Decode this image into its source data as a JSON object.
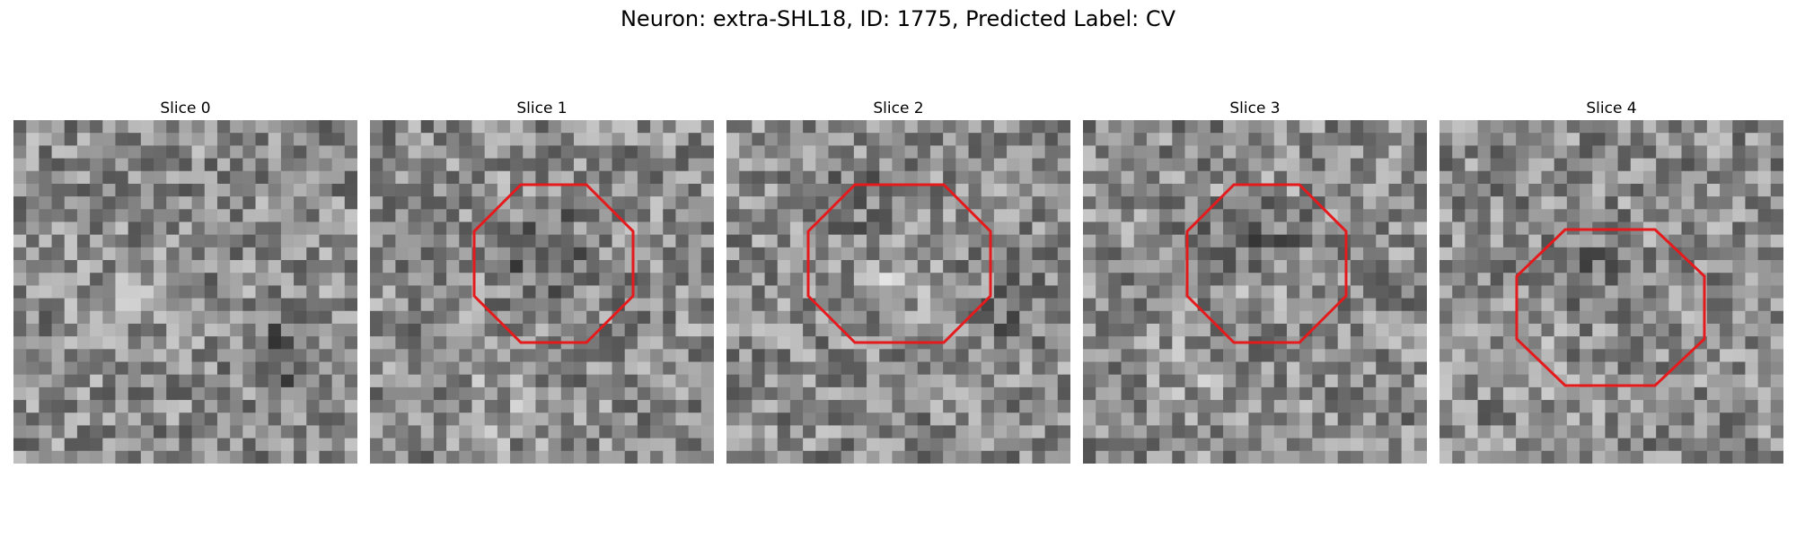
{
  "figure": {
    "title": "Neuron: extra-SHL18, ID: 1775, Predicted Label: CV",
    "outline_color": "#e41a1c"
  },
  "panels": [
    {
      "title": "Slice 0",
      "roi": false
    },
    {
      "title": "Slice 1",
      "roi": true
    },
    {
      "title": "Slice 2",
      "roi": true
    },
    {
      "title": "Slice 3",
      "roi": true
    },
    {
      "title": "Slice 4",
      "roi": true
    }
  ]
}
